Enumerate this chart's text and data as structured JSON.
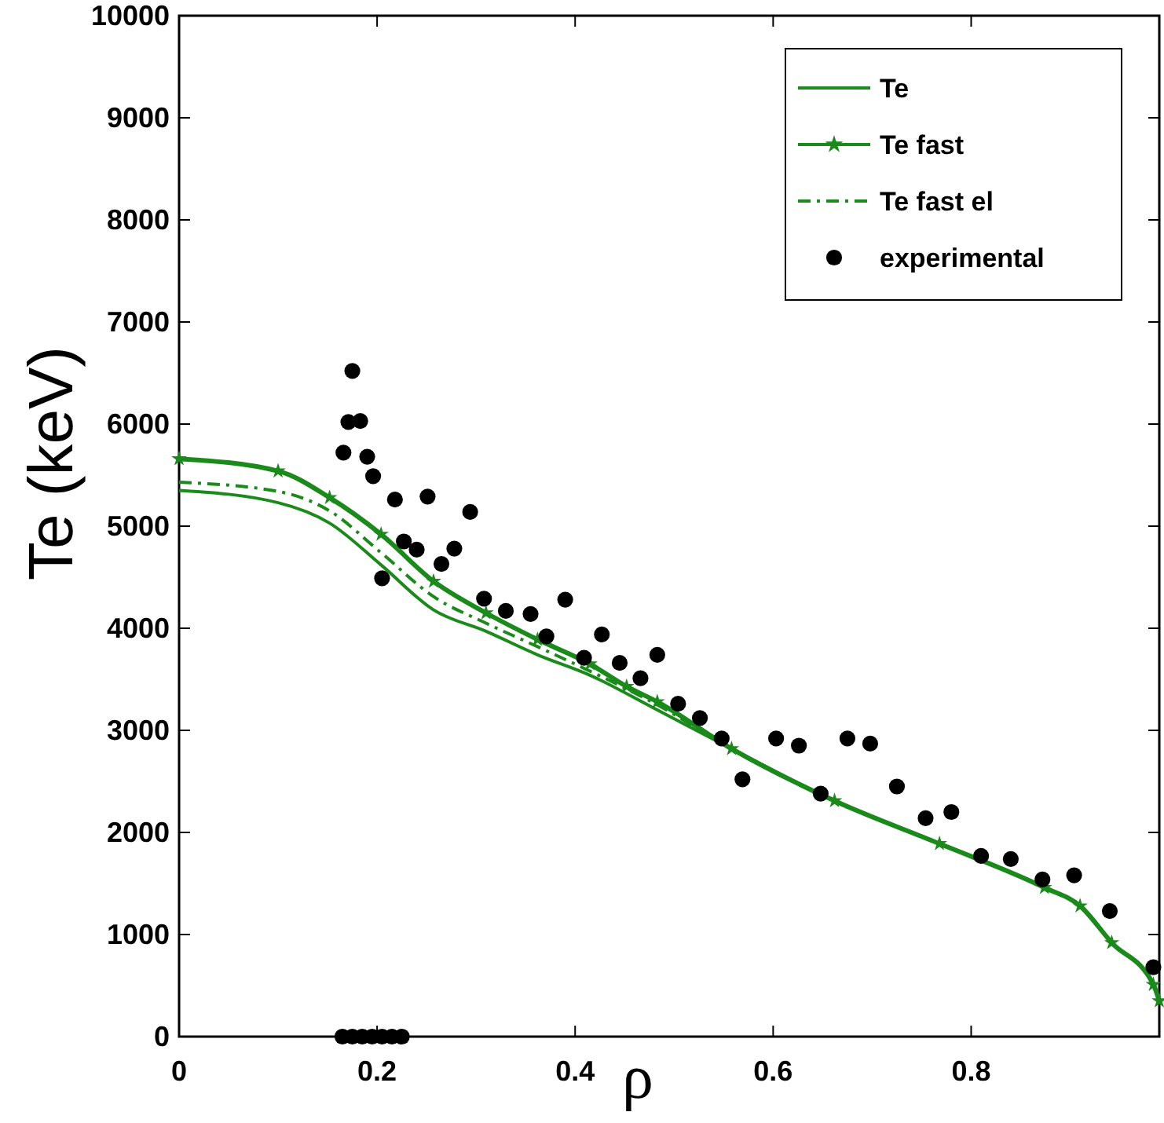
{
  "chart_data": {
    "type": "line",
    "xlabel": "ρ",
    "ylabel": "Te (keV)",
    "xlim": [
      0,
      0.99
    ],
    "ylim": [
      0,
      10000
    ],
    "xticks": [
      0,
      0.2,
      0.4,
      0.6,
      0.8
    ],
    "yticks": [
      0,
      1000,
      2000,
      3000,
      4000,
      5000,
      6000,
      7000,
      8000,
      9000,
      10000
    ],
    "grid": false,
    "legend": "top right",
    "series": [
      {
        "name": "Te",
        "color": "#1a8a1a",
        "line_style": "solid",
        "marker": "none",
        "x": [
          0,
          0.1,
          0.152,
          0.204,
          0.257,
          0.31,
          0.362,
          0.415,
          0.483,
          0.558,
          0.662,
          0.768,
          0.874,
          0.91,
          0.942,
          0.984,
          0.99
        ],
        "values": [
          5350,
          5230,
          5030,
          4620,
          4180,
          3970,
          3740,
          3540,
          3200,
          2820,
          2310,
          1890,
          1460,
          1280,
          920,
          510,
          350
        ]
      },
      {
        "name": "Te fast",
        "color": "#1a8a1a",
        "line_style": "solid",
        "marker": "star",
        "x": [
          0,
          0.1,
          0.152,
          0.204,
          0.257,
          0.31,
          0.362,
          0.415,
          0.452,
          0.483,
          0.558,
          0.662,
          0.768,
          0.874,
          0.91,
          0.942,
          0.984,
          0.99
        ],
        "values": [
          5660,
          5540,
          5280,
          4920,
          4460,
          4150,
          3890,
          3650,
          3430,
          3280,
          2820,
          2310,
          1890,
          1460,
          1280,
          920,
          510,
          350
        ]
      },
      {
        "name": "Te fast el",
        "color": "#1a8a1a",
        "line_style": "dashdot",
        "marker": "none",
        "x": [
          0,
          0.1,
          0.152,
          0.204,
          0.257,
          0.31,
          0.362,
          0.415,
          0.483,
          0.558,
          0.662,
          0.768,
          0.874,
          0.91,
          0.942,
          0.984,
          0.99
        ],
        "values": [
          5430,
          5340,
          5150,
          4740,
          4310,
          4050,
          3820,
          3580,
          3250,
          2820,
          2310,
          1890,
          1460,
          1280,
          920,
          510,
          350
        ]
      },
      {
        "name": "experimental",
        "type": "scatter",
        "color": "#000000",
        "marker": "circle",
        "x": [
          0.175,
          0.171,
          0.183,
          0.166,
          0.19,
          0.196,
          0.218,
          0.251,
          0.294,
          0.227,
          0.24,
          0.278,
          0.265,
          0.205,
          0.308,
          0.33,
          0.355,
          0.39,
          0.371,
          0.427,
          0.409,
          0.445,
          0.483,
          0.466,
          0.504,
          0.526,
          0.548,
          0.569,
          0.603,
          0.626,
          0.648,
          0.675,
          0.698,
          0.725,
          0.754,
          0.78,
          0.81,
          0.84,
          0.872,
          0.904,
          0.94,
          0.984,
          0.165,
          0.175,
          0.185,
          0.195,
          0.205,
          0.215,
          0.225
        ],
        "values": [
          6520,
          6020,
          6030,
          5720,
          5680,
          5490,
          5260,
          5290,
          5140,
          4850,
          4770,
          4780,
          4630,
          4490,
          4290,
          4170,
          4140,
          4280,
          3920,
          3940,
          3710,
          3660,
          3740,
          3510,
          3260,
          3120,
          2920,
          2520,
          2920,
          2850,
          2380,
          2920,
          2870,
          2450,
          2140,
          2200,
          1770,
          1740,
          1540,
          1580,
          1230,
          680,
          0,
          0,
          0,
          0,
          0,
          0,
          0
        ]
      }
    ]
  }
}
